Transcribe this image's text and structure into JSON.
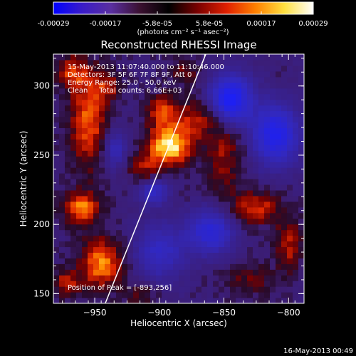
{
  "chart_data": {
    "type": "heatmap",
    "title": "Reconstructed RHESSI Image",
    "xlabel": "Heliocentric X (arcsec)",
    "ylabel": "Heliocentric Y (arcsec)",
    "xlim": [
      -982,
      -788
    ],
    "ylim": [
      143,
      323
    ],
    "xticks": [
      -950,
      -900,
      -850,
      -800
    ],
    "yticks": [
      150,
      200,
      250,
      300
    ],
    "annotations": [
      "15-May-2013 11:07:40.000 to 11:10:46.000",
      "Detectors: 3F 5F 6F 7F 8F 9F, Att 0",
      "Energy Range: 25.0 - 50.0 keV",
      "Clean     Total counts: 6.66E+03"
    ],
    "peak_label": "Position of Peak = [-893,256]",
    "peak": {
      "x": -893,
      "y": 256
    },
    "limb_line": [
      [
        -944,
        138
      ],
      [
        -861,
        330
      ]
    ],
    "colorbar": {
      "range": [
        -0.00029,
        0.00029
      ],
      "tick_labels": [
        "-0.00029",
        "-0.00017",
        "-5.8e-05",
        "5.8e-05",
        "0.00017",
        "0.00029"
      ],
      "unit_label": "(photons cm⁻² s⁻¹ asec⁻²)",
      "colors": [
        "#0000ff",
        "#3a1cc8",
        "#5a2fa0",
        "#3a1030",
        "#000000",
        "#7a0000",
        "#e02000",
        "#ff8000",
        "#ffe040",
        "#ffffff"
      ]
    },
    "hotspots": [
      {
        "x": -892,
        "y": 257,
        "sx": 16,
        "sy": 14,
        "v": 1.0
      },
      {
        "x": -898,
        "y": 282,
        "sx": 12,
        "sy": 12,
        "v": 0.55
      },
      {
        "x": -872,
        "y": 276,
        "sx": 16,
        "sy": 14,
        "v": 0.45
      },
      {
        "x": -912,
        "y": 240,
        "sx": 12,
        "sy": 12,
        "v": 0.4
      },
      {
        "x": -955,
        "y": 275,
        "sx": 14,
        "sy": 35,
        "v": 0.65
      },
      {
        "x": -968,
        "y": 310,
        "sx": 12,
        "sy": 12,
        "v": 0.5
      },
      {
        "x": -940,
        "y": 300,
        "sx": 10,
        "sy": 10,
        "v": 0.4
      },
      {
        "x": -960,
        "y": 212,
        "sx": 14,
        "sy": 12,
        "v": 0.7
      },
      {
        "x": -945,
        "y": 172,
        "sx": 16,
        "sy": 18,
        "v": 0.75
      },
      {
        "x": -972,
        "y": 158,
        "sx": 10,
        "sy": 10,
        "v": 0.5
      },
      {
        "x": -850,
        "y": 250,
        "sx": 14,
        "sy": 28,
        "v": 0.4
      },
      {
        "x": -825,
        "y": 212,
        "sx": 18,
        "sy": 12,
        "v": 0.55
      },
      {
        "x": -800,
        "y": 185,
        "sx": 10,
        "sy": 20,
        "v": 0.45
      },
      {
        "x": -830,
        "y": 160,
        "sx": 18,
        "sy": 12,
        "v": 0.3
      },
      {
        "x": -915,
        "y": 150,
        "sx": 12,
        "sy": 10,
        "v": 0.25
      },
      {
        "x": -880,
        "y": 310,
        "sx": 12,
        "sy": 10,
        "v": 0.3
      }
    ],
    "coldspots": [
      {
        "x": -845,
        "y": 290,
        "sx": 16,
        "sy": 18,
        "v": 0.9
      },
      {
        "x": -810,
        "y": 265,
        "sx": 18,
        "sy": 22,
        "v": 0.75
      },
      {
        "x": -860,
        "y": 195,
        "sx": 18,
        "sy": 16,
        "v": 0.6
      },
      {
        "x": -900,
        "y": 180,
        "sx": 20,
        "sy": 20,
        "v": 0.45
      },
      {
        "x": -905,
        "y": 225,
        "sx": 12,
        "sy": 10,
        "v": 0.5
      },
      {
        "x": -935,
        "y": 255,
        "sx": 10,
        "sy": 14,
        "v": 0.4
      }
    ]
  },
  "footer": {
    "timestamp": "16-May-2013 00:49"
  }
}
